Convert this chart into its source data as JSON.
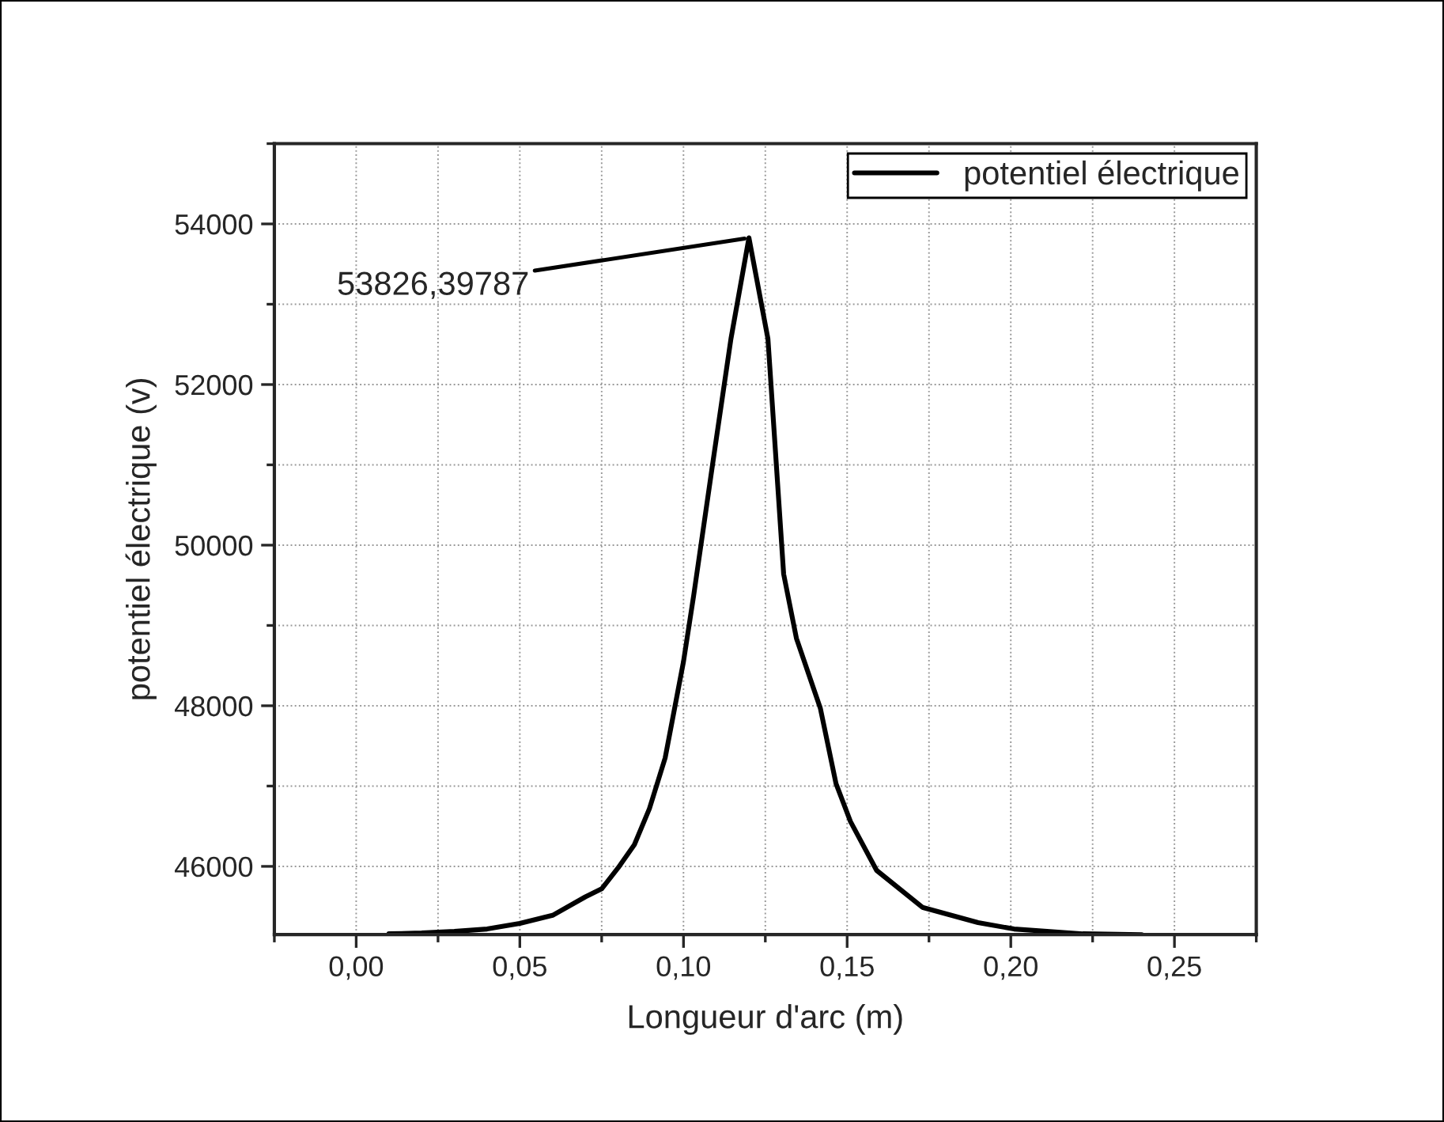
{
  "chart_data": {
    "type": "line",
    "xlabel": "Longueur d'arc (m)",
    "ylabel": "potentiel électrique (v)",
    "xlim": [
      -0.025,
      0.275
    ],
    "ylim": [
      45150,
      55000
    ],
    "xticks": [
      {
        "value": 0,
        "label": "0,00"
      },
      {
        "value": 0.05,
        "label": "0,05"
      },
      {
        "value": 0.1,
        "label": "0,10"
      },
      {
        "value": 0.15,
        "label": "0,15"
      },
      {
        "value": 0.2,
        "label": "0,20"
      },
      {
        "value": 0.25,
        "label": "0,25"
      }
    ],
    "yticks": [
      46000,
      48000,
      50000,
      52000,
      54000
    ],
    "grid": true,
    "legend": "top right",
    "marker": "none",
    "line_style": "solid",
    "annotations": [
      {
        "text": "53826,39787",
        "x": 0.12,
        "y": 53826.39787
      }
    ],
    "series": [
      {
        "name": "potentiel électrique",
        "color": "#000000",
        "x": [
          0.01,
          0.02,
          0.03,
          0.04,
          0.05,
          0.06,
          0.07,
          0.075,
          0.08,
          0.085,
          0.0896,
          0.0944,
          0.1,
          0.1031,
          0.1089,
          0.1145,
          0.12,
          0.1258,
          0.1306,
          0.1345,
          0.1418,
          0.1466,
          0.151,
          0.159,
          0.173,
          0.19,
          0.201,
          0.222,
          0.24
        ],
        "values": [
          45160,
          45170,
          45190,
          45220,
          45290,
          45390,
          45620,
          45720,
          45980,
          46270,
          46720,
          47350,
          48550,
          49370,
          51010,
          52570,
          53826.39787,
          52570,
          49640,
          48840,
          47970,
          47030,
          46560,
          45950,
          45490,
          45300,
          45220,
          45160,
          45150
        ]
      }
    ]
  }
}
